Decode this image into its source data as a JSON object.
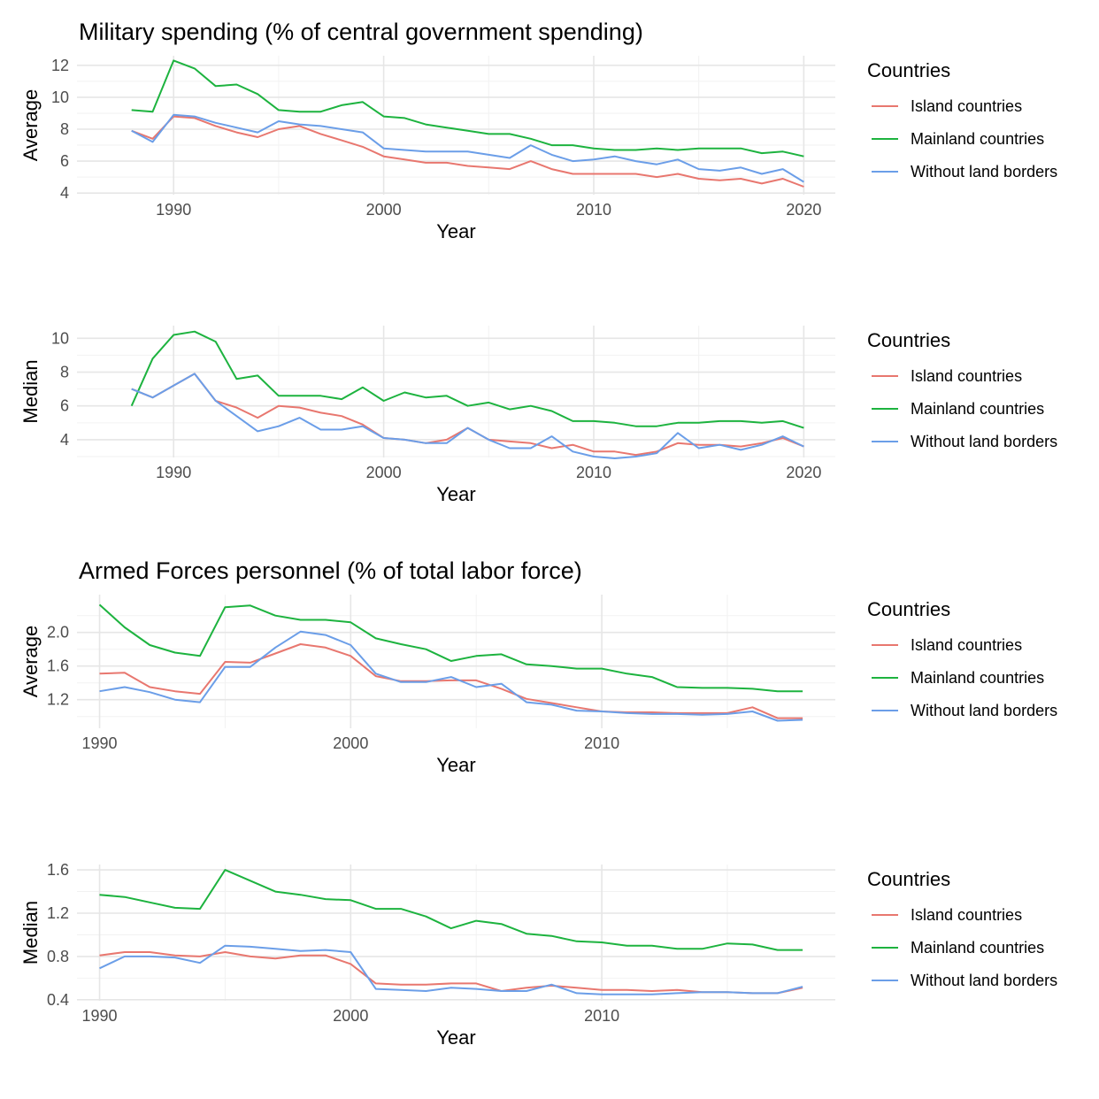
{
  "sections": [
    {
      "title": "Military spending (% of central government spending)"
    },
    {
      "title": "Armed Forces personnel (% of total labor force)"
    }
  ],
  "legend": {
    "title": "Countries",
    "entries": [
      {
        "label": "Island countries",
        "color": "#e8776f"
      },
      {
        "label": "Mainland countries",
        "color": "#1db33f"
      },
      {
        "label": "Without land borders",
        "color": "#6b9ee8"
      }
    ]
  },
  "chart_data": [
    {
      "type": "line",
      "ylabel": "Average",
      "xlabel": "Year",
      "xlim": [
        1985.4,
        2021.5
      ],
      "ylim": [
        3.9,
        12.6
      ],
      "xticks": [
        1990,
        2000,
        2010,
        2020
      ],
      "yticks": [
        4,
        6,
        8,
        10,
        12
      ],
      "x": [
        1988,
        1989,
        1990,
        1991,
        1992,
        1993,
        1994,
        1995,
        1996,
        1997,
        1998,
        1999,
        2000,
        2001,
        2002,
        2003,
        2004,
        2005,
        2006,
        2007,
        2008,
        2009,
        2010,
        2011,
        2012,
        2013,
        2014,
        2015,
        2016,
        2017,
        2018,
        2019,
        2020
      ],
      "series": [
        {
          "name": "Island countries",
          "values": [
            7.9,
            7.4,
            8.8,
            8.7,
            8.2,
            7.8,
            7.5,
            8.0,
            8.2,
            7.7,
            7.3,
            6.9,
            6.3,
            6.1,
            5.9,
            5.9,
            5.7,
            5.6,
            5.5,
            6.0,
            5.5,
            5.2,
            5.2,
            5.2,
            5.2,
            5.0,
            5.2,
            4.9,
            4.8,
            4.9,
            4.6,
            4.9,
            4.4
          ]
        },
        {
          "name": "Mainland countries",
          "values": [
            9.2,
            9.1,
            12.3,
            11.8,
            10.7,
            10.8,
            10.2,
            9.2,
            9.1,
            9.1,
            9.5,
            9.7,
            8.8,
            8.7,
            8.3,
            8.1,
            7.9,
            7.7,
            7.7,
            7.4,
            7.0,
            7.0,
            6.8,
            6.7,
            6.7,
            6.8,
            6.7,
            6.8,
            6.8,
            6.8,
            6.5,
            6.6,
            6.3
          ]
        },
        {
          "name": "Without land borders",
          "values": [
            7.9,
            7.2,
            8.9,
            8.8,
            8.4,
            8.1,
            7.8,
            8.5,
            8.3,
            8.2,
            8.0,
            7.8,
            6.8,
            6.7,
            6.6,
            6.6,
            6.6,
            6.4,
            6.2,
            7.0,
            6.4,
            6.0,
            6.1,
            6.3,
            6.0,
            5.8,
            6.1,
            5.5,
            5.4,
            5.6,
            5.2,
            5.5,
            4.7
          ]
        }
      ]
    },
    {
      "type": "line",
      "ylabel": "Median",
      "xlabel": "Year",
      "xlim": [
        1985.4,
        2021.5
      ],
      "ylim": [
        2.95,
        10.75
      ],
      "xticks": [
        1990,
        2000,
        2010,
        2020
      ],
      "yticks": [
        4,
        6,
        8,
        10
      ],
      "x": [
        1988,
        1989,
        1990,
        1991,
        1992,
        1993,
        1994,
        1995,
        1996,
        1997,
        1998,
        1999,
        2000,
        2001,
        2002,
        2003,
        2004,
        2005,
        2006,
        2007,
        2008,
        2009,
        2010,
        2011,
        2012,
        2013,
        2014,
        2015,
        2016,
        2017,
        2018,
        2019,
        2020
      ],
      "series": [
        {
          "name": "Island countries",
          "values": [
            7.0,
            6.5,
            7.2,
            7.9,
            6.3,
            5.9,
            5.3,
            6.0,
            5.9,
            5.6,
            5.4,
            4.9,
            4.1,
            4.0,
            3.8,
            4.0,
            4.7,
            4.0,
            3.9,
            3.8,
            3.5,
            3.7,
            3.3,
            3.3,
            3.1,
            3.3,
            3.8,
            3.7,
            3.7,
            3.6,
            3.8,
            4.1,
            3.6
          ]
        },
        {
          "name": "Mainland countries",
          "values": [
            6.0,
            8.8,
            10.2,
            10.4,
            9.8,
            7.6,
            7.8,
            6.6,
            6.6,
            6.6,
            6.4,
            7.1,
            6.3,
            6.8,
            6.5,
            6.6,
            6.0,
            6.2,
            5.8,
            6.0,
            5.7,
            5.1,
            5.1,
            5.0,
            4.8,
            4.8,
            5.0,
            5.0,
            5.1,
            5.1,
            5.0,
            5.1,
            4.7
          ]
        },
        {
          "name": "Without land borders",
          "values": [
            7.0,
            6.5,
            7.2,
            7.9,
            6.3,
            5.4,
            4.5,
            4.8,
            5.3,
            4.6,
            4.6,
            4.8,
            4.1,
            4.0,
            3.8,
            3.8,
            4.7,
            4.0,
            3.5,
            3.5,
            4.2,
            3.3,
            3.0,
            2.9,
            3.0,
            3.2,
            4.4,
            3.5,
            3.7,
            3.4,
            3.7,
            4.2,
            3.6
          ]
        }
      ]
    },
    {
      "type": "line",
      "ylabel": "Average",
      "xlabel": "Year",
      "xlim": [
        1989.1,
        2019.3
      ],
      "ylim": [
        0.86,
        2.45
      ],
      "xticks": [
        1990,
        2000,
        2010
      ],
      "yticks": [
        1.2,
        1.6,
        2.0
      ],
      "x": [
        1990,
        1991,
        1992,
        1993,
        1994,
        1995,
        1996,
        1997,
        1998,
        1999,
        2000,
        2001,
        2002,
        2003,
        2004,
        2005,
        2006,
        2007,
        2008,
        2009,
        2010,
        2011,
        2012,
        2013,
        2014,
        2015,
        2016,
        2017,
        2018
      ],
      "series": [
        {
          "name": "Island countries",
          "values": [
            1.51,
            1.52,
            1.35,
            1.3,
            1.27,
            1.65,
            1.64,
            1.75,
            1.86,
            1.82,
            1.72,
            1.48,
            1.42,
            1.42,
            1.43,
            1.43,
            1.33,
            1.21,
            1.16,
            1.11,
            1.06,
            1.05,
            1.05,
            1.04,
            1.04,
            1.04,
            1.11,
            0.98,
            0.98
          ]
        },
        {
          "name": "Mainland countries",
          "values": [
            2.33,
            2.06,
            1.85,
            1.76,
            1.72,
            2.3,
            2.32,
            2.2,
            2.15,
            2.15,
            2.12,
            1.93,
            1.86,
            1.8,
            1.66,
            1.72,
            1.74,
            1.62,
            1.6,
            1.57,
            1.57,
            1.51,
            1.47,
            1.35,
            1.34,
            1.34,
            1.33,
            1.3,
            1.3
          ]
        },
        {
          "name": "Without land borders",
          "values": [
            1.3,
            1.35,
            1.29,
            1.2,
            1.17,
            1.59,
            1.59,
            1.82,
            2.01,
            1.97,
            1.85,
            1.51,
            1.41,
            1.41,
            1.47,
            1.35,
            1.39,
            1.17,
            1.14,
            1.07,
            1.06,
            1.04,
            1.03,
            1.03,
            1.02,
            1.03,
            1.06,
            0.95,
            0.96
          ]
        }
      ]
    },
    {
      "type": "line",
      "ylabel": "Median",
      "xlabel": "Year",
      "xlim": [
        1989.1,
        2019.3
      ],
      "ylim": [
        0.39,
        1.65
      ],
      "xticks": [
        1990,
        2000,
        2010
      ],
      "yticks": [
        0.4,
        0.8,
        1.2,
        1.6
      ],
      "x": [
        1990,
        1991,
        1992,
        1993,
        1994,
        1995,
        1996,
        1997,
        1998,
        1999,
        2000,
        2001,
        2002,
        2003,
        2004,
        2005,
        2006,
        2007,
        2008,
        2009,
        2010,
        2011,
        2012,
        2013,
        2014,
        2015,
        2016,
        2017,
        2018
      ],
      "series": [
        {
          "name": "Island countries",
          "values": [
            0.81,
            0.84,
            0.84,
            0.81,
            0.8,
            0.84,
            0.8,
            0.78,
            0.81,
            0.81,
            0.73,
            0.55,
            0.54,
            0.54,
            0.55,
            0.55,
            0.48,
            0.51,
            0.53,
            0.51,
            0.49,
            0.49,
            0.48,
            0.49,
            0.47,
            0.47,
            0.46,
            0.46,
            0.51
          ]
        },
        {
          "name": "Mainland countries",
          "values": [
            1.37,
            1.35,
            1.3,
            1.25,
            1.24,
            1.6,
            1.5,
            1.4,
            1.37,
            1.33,
            1.32,
            1.24,
            1.24,
            1.17,
            1.06,
            1.13,
            1.1,
            1.01,
            0.99,
            0.94,
            0.93,
            0.9,
            0.9,
            0.87,
            0.87,
            0.92,
            0.91,
            0.86,
            0.86
          ]
        },
        {
          "name": "Without land borders",
          "values": [
            0.69,
            0.8,
            0.8,
            0.79,
            0.74,
            0.9,
            0.89,
            0.87,
            0.85,
            0.86,
            0.84,
            0.5,
            0.49,
            0.48,
            0.51,
            0.5,
            0.48,
            0.48,
            0.54,
            0.46,
            0.45,
            0.45,
            0.45,
            0.46,
            0.47,
            0.47,
            0.46,
            0.46,
            0.52
          ]
        }
      ]
    }
  ]
}
